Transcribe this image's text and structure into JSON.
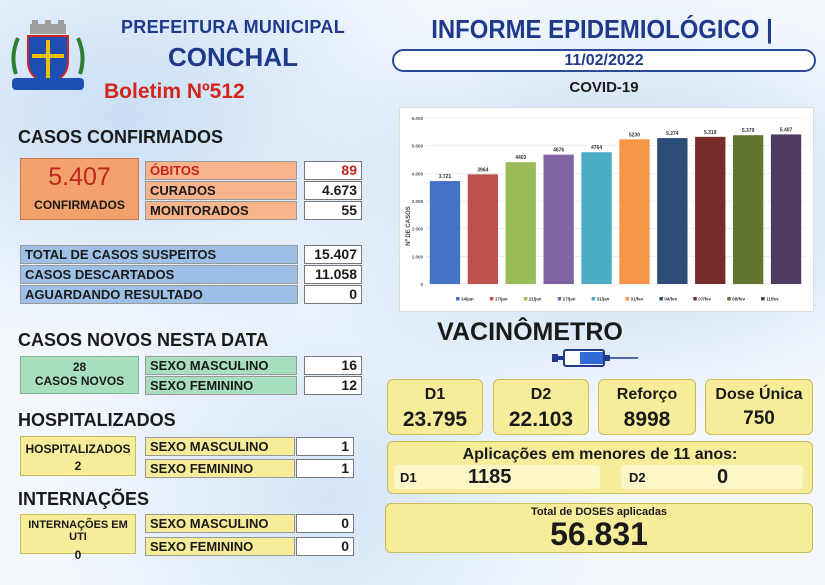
{
  "header": {
    "org": "PREFEITURA MUNICIPAL",
    "city": "CONCHAL",
    "bulletin": "Boletim Nº512",
    "title": "INFORME EPIDEMIOLÓGICO | COVID - 19",
    "date": "11/02/2022",
    "chart_title": "COVID-19"
  },
  "confirmed": {
    "section": "CASOS CONFIRMADOS",
    "total": "5.407",
    "total_label": "CONFIRMADOS",
    "deaths_label": "ÓBITOS",
    "deaths": "89",
    "cured_label": "CURADOS",
    "cured": "4.673",
    "monitored_label": "MONITORADOS",
    "monitored": "55"
  },
  "suspects": {
    "total_label": "TOTAL DE CASOS SUSPEITOS",
    "total": "15.407",
    "discarded_label": "CASOS DESCARTADOS",
    "discarded": "11.058",
    "pending_label": "AGUARDANDO RESULTADO",
    "pending": "0"
  },
  "new_cases": {
    "section": "CASOS NOVOS NESTA DATA",
    "count": "28",
    "count_label": "CASOS NOVOS",
    "male_label": "SEXO MASCULINO",
    "male": "16",
    "female_label": "SEXO FEMININO",
    "female": "12"
  },
  "hospitalized": {
    "section": "HOSPITALIZADOS",
    "label": "HOSPITALIZADOS",
    "count": "2",
    "male_label": "SEXO MASCULINO",
    "male": "1",
    "female_label": "SEXO FEMININO",
    "female": "1"
  },
  "icu": {
    "section": "INTERNAÇÕES",
    "label": "INTERNAÇÕES EM UTI",
    "count": "0",
    "male_label": "SEXO MASCULINO",
    "male": "0",
    "female_label": "SEXO FEMININO",
    "female": "0"
  },
  "vaccine": {
    "title": "VACINÔMETRO",
    "d1_label": "D1",
    "d1": "23.795",
    "d2_label": "D2",
    "d2": "22.103",
    "booster_label": "Reforço",
    "booster": "8998",
    "single_label": "Dose Única",
    "single": "750",
    "minors_title": "Aplicações em menores de 11 anos:",
    "minors_d1_label": "D1",
    "minors_d1": "1185",
    "minors_d2_label": "D2",
    "minors_d2": "0",
    "total_label": "Total de DOSES aplicadas",
    "total": "56.831"
  },
  "chart_data": {
    "type": "bar",
    "ylabel": "Nº DE CASOS",
    "ylim": [
      0,
      6000
    ],
    "yticks": [
      "0",
      "1.000",
      "2.000",
      "3.000",
      "4.000",
      "5.000",
      "6.000"
    ],
    "categories": [
      "14/jan",
      "17/jan",
      "21/jan",
      "27/jan",
      "31/jan",
      "01/fev",
      "04/fev",
      "07/fev",
      "08/fev",
      "11/fev"
    ],
    "values": [
      3721,
      3964,
      4403,
      4676,
      4764,
      5230,
      5274,
      5319,
      5379,
      5407
    ],
    "labels": [
      "3.721",
      "3964",
      "4403",
      "4676",
      "4764",
      "5230",
      "5.274",
      "5.319",
      "5.379",
      "5.407"
    ],
    "colors": [
      "#4472c4",
      "#c0504d",
      "#9bbb59",
      "#8064a2",
      "#4bacc6",
      "#f79646",
      "#2c4d75",
      "#772c2a",
      "#5f7530",
      "#4d3b62"
    ]
  }
}
